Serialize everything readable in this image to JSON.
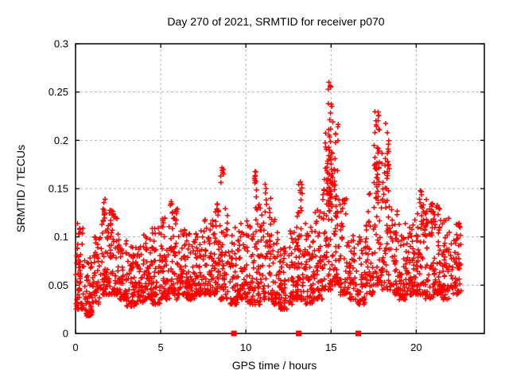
{
  "chart_data": {
    "type": "scatter",
    "title": "Day 270 of 2021, SRMTID for receiver p070",
    "xlabel": "GPS time / hours",
    "ylabel": "SRMTID / TECUs",
    "xlim": [
      0,
      24
    ],
    "ylim": [
      0,
      0.3
    ],
    "xtick_values": [
      0,
      5,
      10,
      15,
      20
    ],
    "xtick_labels": [
      "0",
      "5",
      "10",
      "15",
      "20"
    ],
    "ytick_values": [
      0,
      0.05,
      0.1,
      0.15,
      0.2,
      0.25,
      0.3
    ],
    "ytick_labels": [
      "0",
      "0.05",
      "0.1",
      "0.15",
      "0.2",
      "0.25",
      "0.3"
    ],
    "grid": true,
    "grid_color": "#b3b3b3",
    "border_color": "#000000",
    "background_color": "#ffffff",
    "marker": {
      "shape": "plus",
      "color": "#ff0000",
      "size": 7
    },
    "axis_event_markers": {
      "shape": "square",
      "color": "#ff0000",
      "x": [
        9.3,
        13.1,
        16.6
      ]
    },
    "series": [
      {
        "name": "SRMTID",
        "color": "#ff0000",
        "seed": 1337,
        "skew": 1.6,
        "note": "dense 30s-cadence scatter ~0.03-0.12 TECUs with spikes; encoded as density bins [x0,x1,ymin,ymax,count] plus burst clusters [xc,xspread,ymin,ymax,count]",
        "density_bins": [
          [
            0.0,
            0.5,
            0.025,
            0.115,
            55
          ],
          [
            0.5,
            1.0,
            0.018,
            0.09,
            50
          ],
          [
            1.0,
            1.5,
            0.03,
            0.1,
            50
          ],
          [
            1.5,
            2.0,
            0.04,
            0.125,
            52
          ],
          [
            2.0,
            2.5,
            0.04,
            0.13,
            55
          ],
          [
            2.5,
            3.0,
            0.035,
            0.1,
            50
          ],
          [
            3.0,
            3.5,
            0.028,
            0.095,
            48
          ],
          [
            3.5,
            4.0,
            0.03,
            0.09,
            50
          ],
          [
            4.0,
            4.5,
            0.035,
            0.105,
            52
          ],
          [
            4.5,
            5.0,
            0.03,
            0.11,
            50
          ],
          [
            5.0,
            5.5,
            0.035,
            0.12,
            52
          ],
          [
            5.5,
            6.0,
            0.035,
            0.13,
            52
          ],
          [
            6.0,
            6.5,
            0.04,
            0.11,
            52
          ],
          [
            6.5,
            7.0,
            0.035,
            0.105,
            52
          ],
          [
            7.0,
            7.5,
            0.04,
            0.11,
            55
          ],
          [
            7.5,
            8.0,
            0.04,
            0.12,
            52
          ],
          [
            8.0,
            8.5,
            0.04,
            0.13,
            52
          ],
          [
            8.5,
            9.0,
            0.035,
            0.13,
            48
          ],
          [
            9.0,
            9.5,
            0.03,
            0.115,
            45
          ],
          [
            9.5,
            10.0,
            0.035,
            0.115,
            48
          ],
          [
            10.0,
            10.5,
            0.03,
            0.12,
            48
          ],
          [
            10.5,
            11.0,
            0.03,
            0.135,
            50
          ],
          [
            11.0,
            11.5,
            0.035,
            0.145,
            48
          ],
          [
            11.5,
            12.0,
            0.03,
            0.12,
            48
          ],
          [
            12.0,
            12.5,
            0.025,
            0.1,
            48
          ],
          [
            12.5,
            13.0,
            0.03,
            0.115,
            48
          ],
          [
            13.0,
            13.5,
            0.035,
            0.13,
            50
          ],
          [
            13.5,
            14.0,
            0.03,
            0.11,
            48
          ],
          [
            14.0,
            14.5,
            0.035,
            0.13,
            50
          ],
          [
            14.5,
            15.0,
            0.045,
            0.2,
            58
          ],
          [
            15.0,
            15.5,
            0.05,
            0.22,
            58
          ],
          [
            15.5,
            16.0,
            0.04,
            0.14,
            45
          ],
          [
            16.0,
            16.5,
            0.035,
            0.11,
            40
          ],
          [
            16.5,
            17.0,
            0.03,
            0.1,
            42
          ],
          [
            17.0,
            17.5,
            0.04,
            0.145,
            48
          ],
          [
            17.5,
            18.0,
            0.05,
            0.2,
            52
          ],
          [
            18.0,
            18.5,
            0.045,
            0.19,
            50
          ],
          [
            18.5,
            19.0,
            0.04,
            0.13,
            48
          ],
          [
            19.0,
            19.5,
            0.035,
            0.115,
            48
          ],
          [
            19.5,
            20.0,
            0.04,
            0.12,
            48
          ],
          [
            20.0,
            20.5,
            0.04,
            0.145,
            52
          ],
          [
            20.5,
            21.0,
            0.035,
            0.14,
            52
          ],
          [
            21.0,
            21.5,
            0.04,
            0.135,
            52
          ],
          [
            21.5,
            22.0,
            0.035,
            0.12,
            50
          ],
          [
            22.0,
            22.7,
            0.04,
            0.115,
            52
          ]
        ],
        "bursts": [
          [
            0.2,
            0.06,
            0.1,
            0.116,
            5
          ],
          [
            0.45,
            0.1,
            0.015,
            0.03,
            4
          ],
          [
            1.7,
            0.08,
            0.115,
            0.146,
            7
          ],
          [
            2.1,
            0.1,
            0.11,
            0.13,
            5
          ],
          [
            5.6,
            0.1,
            0.115,
            0.14,
            7
          ],
          [
            8.3,
            0.1,
            0.115,
            0.135,
            6
          ],
          [
            8.6,
            0.07,
            0.148,
            0.175,
            7
          ],
          [
            10.55,
            0.06,
            0.14,
            0.177,
            10
          ],
          [
            11.2,
            0.07,
            0.13,
            0.16,
            5
          ],
          [
            13.2,
            0.1,
            0.125,
            0.16,
            10
          ],
          [
            14.9,
            0.15,
            0.13,
            0.215,
            40
          ],
          [
            14.95,
            0.1,
            0.215,
            0.266,
            9
          ],
          [
            15.3,
            0.1,
            0.1,
            0.15,
            10
          ],
          [
            17.7,
            0.12,
            0.145,
            0.23,
            28
          ],
          [
            18.3,
            0.08,
            0.14,
            0.22,
            12
          ],
          [
            20.3,
            0.08,
            0.11,
            0.152,
            8
          ],
          [
            21.1,
            0.18,
            0.1,
            0.135,
            12
          ],
          [
            22.4,
            0.15,
            0.08,
            0.115,
            8
          ]
        ]
      }
    ]
  }
}
